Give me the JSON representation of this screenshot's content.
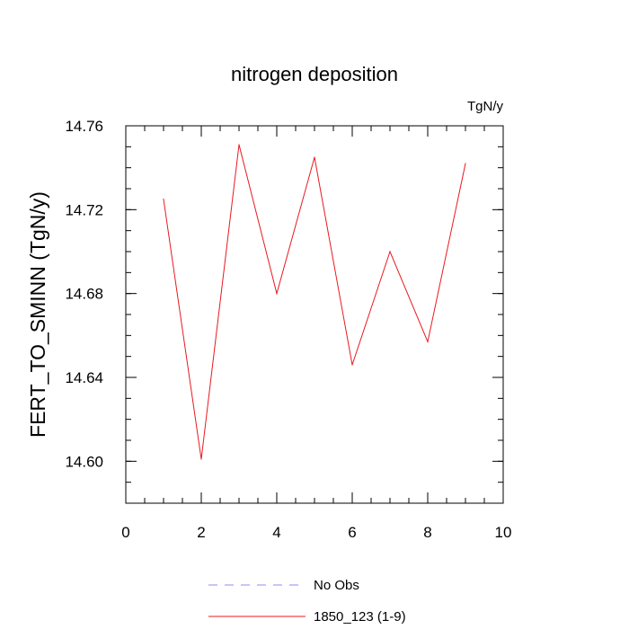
{
  "chart_data": {
    "type": "line",
    "title": "nitrogen deposition",
    "units_label": "TgN/y",
    "xlabel": "",
    "ylabel": "FERT_TO_SMINN  (TgN/y)",
    "xlim": [
      0,
      10
    ],
    "ylim": [
      14.58,
      14.76
    ],
    "x_ticks": [
      0,
      2,
      4,
      6,
      8,
      10
    ],
    "x_tick_labels": [
      "0",
      "2",
      "4",
      "6",
      "8",
      "10"
    ],
    "x_minor_step": 0.5,
    "y_ticks": [
      14.6,
      14.64,
      14.68,
      14.72,
      14.76
    ],
    "y_tick_labels": [
      "14.60",
      "14.64",
      "14.68",
      "14.72",
      "14.76"
    ],
    "y_minor_step": 0.01,
    "series": [
      {
        "name": "1850_123 (1-9)",
        "color": "#e8191f",
        "dash": "solid",
        "x": [
          1,
          2,
          3,
          4,
          5,
          6,
          7,
          8,
          9
        ],
        "values": [
          14.725,
          14.601,
          14.751,
          14.68,
          14.745,
          14.646,
          14.7,
          14.657,
          14.742
        ]
      }
    ],
    "legend": [
      {
        "label": "No Obs",
        "color": "#8c8cf2",
        "dash": "dashed"
      },
      {
        "label": "1850_123 (1-9)",
        "color": "#e8191f",
        "dash": "solid"
      }
    ],
    "grid": false
  }
}
